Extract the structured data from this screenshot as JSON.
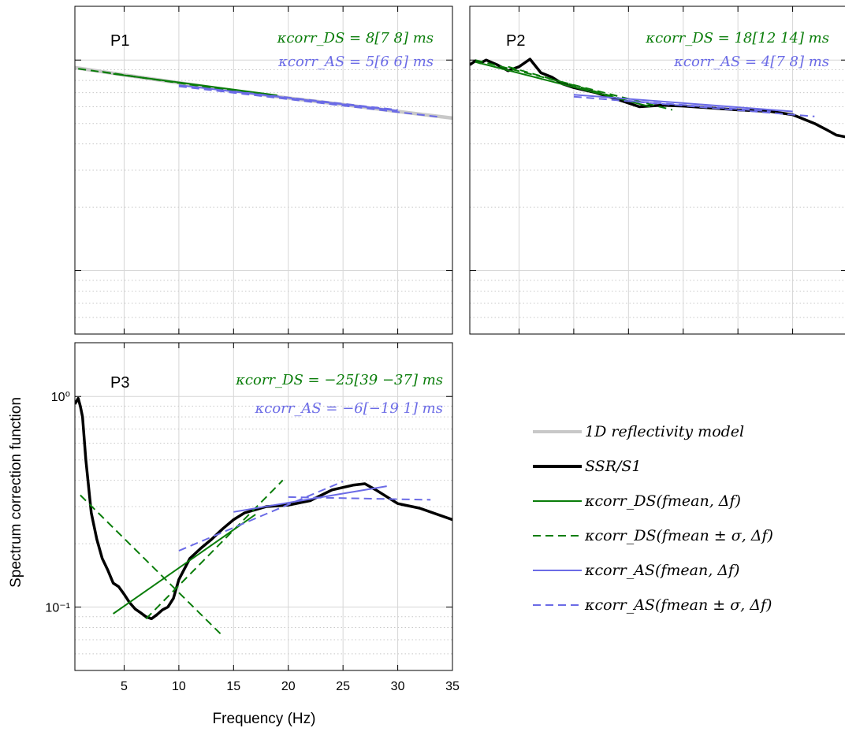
{
  "figure": {
    "ylabel": "Spectrum correction function",
    "xlabel": "Frequency (Hz)"
  },
  "legend": {
    "items": [
      {
        "label": "1D reflectivity model",
        "color": "#c8c8c8",
        "dash": "solid",
        "width": 4
      },
      {
        "label": "SSR/S1",
        "color": "#000000",
        "dash": "solid",
        "width": 4
      },
      {
        "label": "κcorr_DS(fmean, Δf)",
        "color": "#0a7d0a",
        "dash": "solid",
        "width": 2
      },
      {
        "label": "κcorr_DS(fmean ± σ, Δf)",
        "color": "#0a7d0a",
        "dash": "dashed",
        "width": 2
      },
      {
        "label": "κcorr_AS(fmean, Δf)",
        "color": "#6b6be6",
        "dash": "solid",
        "width": 2
      },
      {
        "label": "κcorr_AS(fmean ± σ, Δf)",
        "color": "#6b6be6",
        "dash": "dashed",
        "width": 2
      }
    ]
  },
  "colors": {
    "model": "#c8c8c8",
    "ssr": "#000000",
    "ds": "#0a7d0a",
    "as": "#6b6be6",
    "grid_major": "#d6d6d6",
    "grid_minor": "#c8c8c8"
  },
  "chart_data": [
    {
      "type": "line",
      "panel": "P1",
      "xlim": [
        0.5,
        35
      ],
      "ylim": [
        0.05,
        1.8
      ],
      "yscale": "log",
      "grid": true,
      "xticks": [
        5,
        10,
        15,
        20,
        25,
        30,
        35
      ],
      "yticks": [
        0.1,
        1
      ],
      "annotations": {
        "ds": "κcorr_DS = 8[7 8] ms",
        "as": "κcorr_AS = 5[6 6] ms"
      },
      "series": [
        {
          "role": "model",
          "x": [
            0.5,
            5,
            10,
            15,
            20,
            25,
            30,
            35
          ],
          "y": [
            0.92,
            0.85,
            0.78,
            0.715,
            0.66,
            0.615,
            0.57,
            0.53
          ]
        },
        {
          "role": "ds",
          "x": [
            4,
            19
          ],
          "y": [
            0.86,
            0.68
          ]
        },
        {
          "role": "ds_dash",
          "x": [
            0.8,
            19
          ],
          "y": [
            0.91,
            0.67
          ]
        },
        {
          "role": "ds_dash",
          "x": [
            3,
            16
          ],
          "y": [
            0.88,
            0.7
          ]
        },
        {
          "role": "as",
          "x": [
            10,
            30
          ],
          "y": [
            0.76,
            0.575
          ]
        },
        {
          "role": "as_dash",
          "x": [
            10,
            34
          ],
          "y": [
            0.75,
            0.535
          ]
        },
        {
          "role": "as_dash",
          "x": [
            15,
            30
          ],
          "y": [
            0.71,
            0.58
          ]
        }
      ]
    },
    {
      "type": "line",
      "panel": "P2",
      "xlim": [
        0.5,
        35
      ],
      "ylim": [
        0.05,
        1.8
      ],
      "yscale": "log",
      "grid": true,
      "xticks": [
        5,
        10,
        15,
        20,
        25,
        30,
        35
      ],
      "yticks": [
        0.1,
        1
      ],
      "annotations": {
        "ds": "κcorr_DS = 18[12 14] ms",
        "as": "κcorr_AS = 4[7 8] ms"
      },
      "series": [
        {
          "role": "ssr",
          "x": [
            0.5,
            1,
            1.5,
            2,
            3,
            4,
            5,
            6,
            7,
            8,
            9,
            10,
            11,
            12,
            14,
            16,
            18,
            20,
            22,
            25,
            28,
            30,
            32,
            33,
            34,
            35
          ],
          "y": [
            0.95,
            0.99,
            0.97,
            1.0,
            0.95,
            0.89,
            0.93,
            1.01,
            0.87,
            0.83,
            0.77,
            0.74,
            0.72,
            0.7,
            0.65,
            0.6,
            0.61,
            0.605,
            0.595,
            0.58,
            0.57,
            0.55,
            0.5,
            0.47,
            0.44,
            0.43
          ]
        },
        {
          "role": "ds",
          "x": [
            1,
            17
          ],
          "y": [
            0.98,
            0.6
          ]
        },
        {
          "role": "ds_dash",
          "x": [
            1,
            19
          ],
          "y": [
            1.0,
            0.58
          ]
        },
        {
          "role": "ds_dash",
          "x": [
            4,
            15
          ],
          "y": [
            0.93,
            0.64
          ]
        },
        {
          "role": "as",
          "x": [
            10,
            30
          ],
          "y": [
            0.685,
            0.57
          ]
        },
        {
          "role": "as_dash",
          "x": [
            10,
            32
          ],
          "y": [
            0.67,
            0.54
          ]
        },
        {
          "role": "as_dash",
          "x": [
            15,
            28
          ],
          "y": [
            0.64,
            0.57
          ]
        }
      ]
    },
    {
      "type": "line",
      "panel": "P3",
      "xlim": [
        0.5,
        35
      ],
      "ylim": [
        0.05,
        1.8
      ],
      "yscale": "log",
      "grid": true,
      "xticks": [
        5,
        10,
        15,
        20,
        25,
        30,
        35
      ],
      "xticklabels": [
        "5",
        "10",
        "15",
        "20",
        "25",
        "30",
        "35"
      ],
      "yticks": [
        0.1,
        1
      ],
      "yticklabels": [
        "10⁻¹",
        "10⁰"
      ],
      "annotations": {
        "ds": "κcorr_DS = −25[39 −37] ms",
        "as": "κcorr_AS = −6[−19 1] ms"
      },
      "series": [
        {
          "role": "ssr",
          "x": [
            0.5,
            0.8,
            1.0,
            1.2,
            1.5,
            2,
            2.5,
            3,
            3.5,
            4,
            4.5,
            5,
            5.5,
            6,
            6.5,
            7,
            7.5,
            8,
            8.5,
            9,
            9.5,
            10,
            11,
            12,
            13,
            14,
            15,
            16,
            17,
            18,
            20,
            22,
            24,
            26,
            27,
            28,
            30,
            32,
            35
          ],
          "y": [
            0.92,
            0.98,
            0.9,
            0.8,
            0.5,
            0.28,
            0.21,
            0.17,
            0.15,
            0.13,
            0.125,
            0.115,
            0.105,
            0.098,
            0.094,
            0.09,
            0.088,
            0.092,
            0.097,
            0.1,
            0.11,
            0.135,
            0.17,
            0.19,
            0.21,
            0.235,
            0.26,
            0.28,
            0.29,
            0.3,
            0.305,
            0.32,
            0.36,
            0.38,
            0.385,
            0.36,
            0.31,
            0.295,
            0.26
          ]
        },
        {
          "role": "ds",
          "x": [
            4,
            17
          ],
          "y": [
            0.093,
            0.275
          ]
        },
        {
          "role": "ds_dash",
          "x": [
            1,
            14
          ],
          "y": [
            0.34,
            0.073
          ]
        },
        {
          "role": "ds_dash",
          "x": [
            7,
            19.5
          ],
          "y": [
            0.088,
            0.4
          ]
        },
        {
          "role": "as",
          "x": [
            15,
            29
          ],
          "y": [
            0.283,
            0.375
          ]
        },
        {
          "role": "as_dash",
          "x": [
            10,
            25
          ],
          "y": [
            0.185,
            0.395
          ]
        },
        {
          "role": "as_dash",
          "x": [
            20,
            33
          ],
          "y": [
            0.333,
            0.323
          ]
        }
      ]
    }
  ]
}
